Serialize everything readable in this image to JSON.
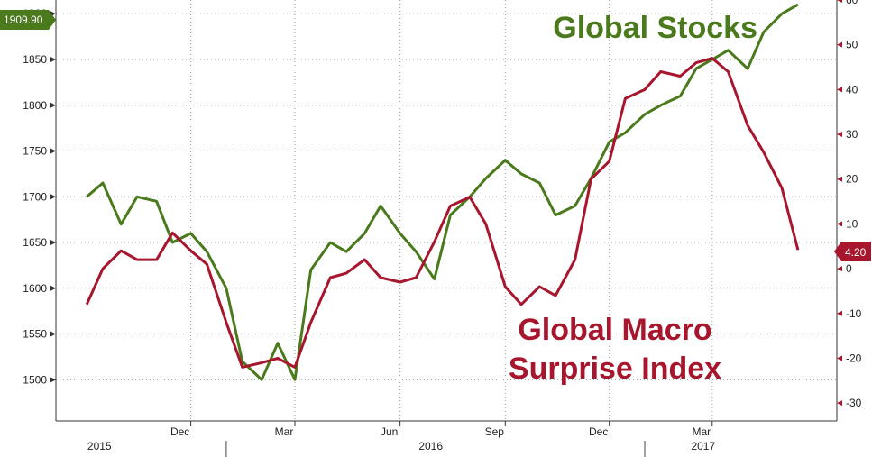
{
  "chart_data": {
    "type": "line",
    "title": "",
    "colors": {
      "stocks": "#4a7a1c",
      "macro": "#a8162e",
      "grid": "#9a9a9a"
    },
    "y_left": {
      "ticks": [
        1500,
        1550,
        1600,
        1650,
        1700,
        1750,
        1800,
        1850,
        1900
      ],
      "range": [
        1455,
        1915
      ]
    },
    "y_right": {
      "ticks": [
        -30,
        -20,
        -10,
        0,
        10,
        20,
        30,
        40,
        50,
        60
      ],
      "range": [
        -34,
        60
      ]
    },
    "x_axis": {
      "months": [
        "Dec",
        "Mar",
        "Jun",
        "Sep",
        "Dec",
        "Mar"
      ],
      "years": [
        "2015",
        "2016",
        "2017"
      ]
    },
    "series": [
      {
        "name": "Global Stocks",
        "axis": "left",
        "x": [
          "2015-09-01",
          "2015-09-15",
          "2015-10-01",
          "2015-10-15",
          "2015-11-01",
          "2015-11-15",
          "2015-12-01",
          "2015-12-15",
          "2016-01-01",
          "2016-01-15",
          "2016-02-01",
          "2016-02-15",
          "2016-03-01",
          "2016-03-15",
          "2016-04-01",
          "2016-04-15",
          "2016-05-01",
          "2016-05-15",
          "2016-06-01",
          "2016-06-15",
          "2016-07-01",
          "2016-07-15",
          "2016-08-01",
          "2016-08-15",
          "2016-09-01",
          "2016-09-15",
          "2016-10-01",
          "2016-10-15",
          "2016-11-01",
          "2016-11-15",
          "2016-12-01",
          "2016-12-15",
          "2017-01-01",
          "2017-01-15",
          "2017-02-01",
          "2017-02-15",
          "2017-03-01",
          "2017-03-15",
          "2017-04-01",
          "2017-04-15",
          "2017-05-01",
          "2017-05-15"
        ],
        "values": [
          1700,
          1715,
          1670,
          1700,
          1695,
          1650,
          1660,
          1640,
          1600,
          1520,
          1500,
          1540,
          1500,
          1620,
          1650,
          1640,
          1660,
          1690,
          1660,
          1640,
          1610,
          1680,
          1700,
          1720,
          1740,
          1725,
          1715,
          1680,
          1690,
          1720,
          1760,
          1770,
          1790,
          1800,
          1810,
          1840,
          1850,
          1860,
          1840,
          1880,
          1900,
          1910
        ]
      },
      {
        "name": "Global Macro Surprise Index",
        "axis": "right",
        "x": [
          "2015-09-01",
          "2015-09-15",
          "2015-10-01",
          "2015-10-15",
          "2015-11-01",
          "2015-11-15",
          "2015-12-01",
          "2015-12-15",
          "2016-01-01",
          "2016-01-15",
          "2016-02-01",
          "2016-02-15",
          "2016-03-01",
          "2016-03-15",
          "2016-04-01",
          "2016-04-15",
          "2016-05-01",
          "2016-05-15",
          "2016-06-01",
          "2016-06-15",
          "2016-07-01",
          "2016-07-15",
          "2016-08-01",
          "2016-08-15",
          "2016-09-01",
          "2016-09-15",
          "2016-10-01",
          "2016-10-15",
          "2016-11-01",
          "2016-11-15",
          "2016-12-01",
          "2016-12-15",
          "2017-01-01",
          "2017-01-15",
          "2017-02-01",
          "2017-02-15",
          "2017-03-01",
          "2017-03-15",
          "2017-04-01",
          "2017-04-15",
          "2017-05-01",
          "2017-05-15"
        ],
        "values": [
          -8,
          0,
          4,
          2,
          2,
          8,
          4,
          1,
          -12,
          -22,
          -21,
          -20,
          -22,
          -12,
          -2,
          -1,
          2,
          -2,
          -3,
          -2,
          6,
          14,
          16,
          10,
          -4,
          -8,
          -4,
          -6,
          2,
          20,
          24,
          38,
          40,
          44,
          43,
          46,
          47,
          44,
          32,
          26,
          18,
          4.2
        ]
      }
    ],
    "annotations": {
      "stocks_label": "Global Stocks",
      "macro_label_line1": "Global Macro",
      "macro_label_line2": "Surprise Index"
    },
    "last_values": {
      "stocks": "1909.90",
      "macro": "4.20"
    },
    "grid": true
  }
}
